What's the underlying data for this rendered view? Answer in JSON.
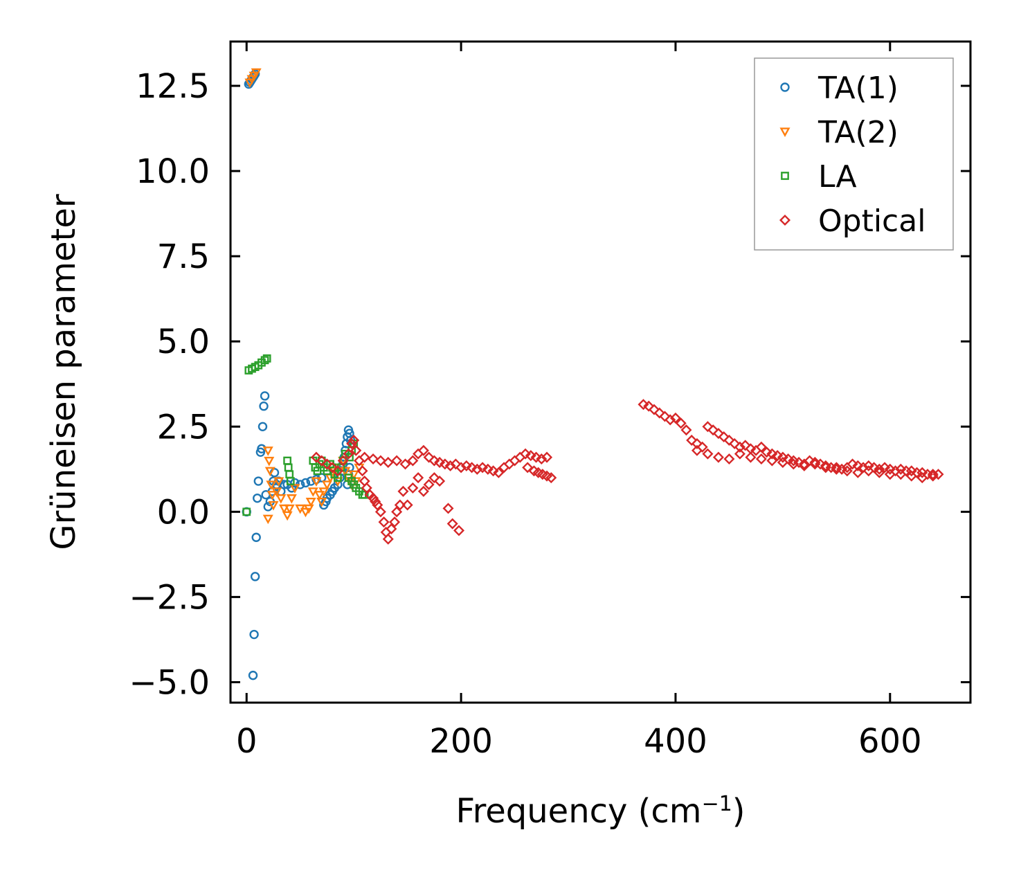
{
  "chart_data": {
    "type": "scatter",
    "title": "",
    "xlabel": "Frequency (cm",
    "xlabel_sup": "−1",
    "xlabel_suffix": ")",
    "ylabel": "Grüneisen parameter",
    "xlim": [
      -15,
      675
    ],
    "ylim": [
      -5.6,
      13.8
    ],
    "xticks": [
      0,
      200,
      400,
      600
    ],
    "xtick_labels": [
      "0",
      "200",
      "400",
      "600"
    ],
    "yticks": [
      -5.0,
      -2.5,
      0.0,
      2.5,
      5.0,
      7.5,
      10.0,
      12.5
    ],
    "ytick_labels": [
      "−5.0",
      "−2.5",
      "0.0",
      "2.5",
      "5.0",
      "7.5",
      "10.0",
      "12.5"
    ],
    "legend_position": "top-right",
    "series": [
      {
        "name": "TA(1)",
        "marker": "circle",
        "color": "#1f77b4",
        "points": [
          [
            0,
            0
          ],
          [
            2,
            12.55
          ],
          [
            3,
            12.6
          ],
          [
            4,
            12.65
          ],
          [
            5,
            12.7
          ],
          [
            6,
            12.75
          ],
          [
            7,
            12.8
          ],
          [
            8,
            12.85
          ],
          [
            6,
            -4.8
          ],
          [
            7,
            -3.6
          ],
          [
            8,
            -1.9
          ],
          [
            9,
            -0.75
          ],
          [
            10,
            0.4
          ],
          [
            11,
            0.9
          ],
          [
            13,
            1.75
          ],
          [
            14,
            1.85
          ],
          [
            15,
            2.5
          ],
          [
            16,
            3.1
          ],
          [
            17,
            3.4
          ],
          [
            18,
            0.5
          ],
          [
            20,
            0.15
          ],
          [
            22,
            0.3
          ],
          [
            24,
            0.6
          ],
          [
            25,
            0.9
          ],
          [
            26,
            1.15
          ],
          [
            28,
            0.8
          ],
          [
            30,
            0.9
          ],
          [
            32,
            0.6
          ],
          [
            35,
            0.8
          ],
          [
            38,
            0.8
          ],
          [
            42,
            0.7
          ],
          [
            45,
            0.85
          ],
          [
            50,
            0.8
          ],
          [
            55,
            0.85
          ],
          [
            60,
            0.9
          ],
          [
            65,
            0.95
          ],
          [
            70,
            1.0
          ],
          [
            72,
            0.2
          ],
          [
            74,
            0.3
          ],
          [
            75,
            0.4
          ],
          [
            78,
            0.5
          ],
          [
            80,
            0.6
          ],
          [
            82,
            0.7
          ],
          [
            85,
            0.8
          ],
          [
            87,
            1.0
          ],
          [
            89,
            1.2
          ],
          [
            90,
            1.4
          ],
          [
            91,
            1.6
          ],
          [
            92,
            1.8
          ],
          [
            93,
            2.0
          ],
          [
            94,
            2.2
          ],
          [
            95,
            2.4
          ],
          [
            96,
            2.3
          ],
          [
            97,
            2.1
          ],
          [
            94,
            0.8
          ],
          [
            95,
            1.1
          ],
          [
            96,
            1.3
          ]
        ]
      },
      {
        "name": "TA(2)",
        "marker": "triangle-down",
        "color": "#ff7f0e",
        "points": [
          [
            3,
            12.6
          ],
          [
            5,
            12.7
          ],
          [
            7,
            12.8
          ],
          [
            9,
            12.9
          ],
          [
            20,
            1.8
          ],
          [
            21,
            1.5
          ],
          [
            22,
            1.2
          ],
          [
            23,
            0.8
          ],
          [
            24,
            0.5
          ],
          [
            25,
            0.2
          ],
          [
            20,
            -0.2
          ],
          [
            28,
            0.6
          ],
          [
            30,
            0.9
          ],
          [
            32,
            0.4
          ],
          [
            35,
            0.1
          ],
          [
            38,
            -0.1
          ],
          [
            40,
            0.1
          ],
          [
            42,
            0.4
          ],
          [
            45,
            0.7
          ],
          [
            50,
            0.1
          ],
          [
            55,
            0.0
          ],
          [
            58,
            0.1
          ],
          [
            60,
            0.3
          ],
          [
            62,
            0.6
          ],
          [
            65,
            0.9
          ],
          [
            68,
            0.5
          ],
          [
            70,
            0.3
          ],
          [
            72,
            0.6
          ],
          [
            75,
            0.8
          ],
          [
            78,
            1.0
          ],
          [
            82,
            1.2
          ],
          [
            85,
            0.9
          ],
          [
            88,
            1.3
          ],
          [
            90,
            1.5
          ],
          [
            92,
            1.2
          ],
          [
            95,
            1.0
          ],
          [
            98,
            0.8
          ],
          [
            100,
            1.1
          ],
          [
            102,
            0.9
          ],
          [
            105,
            1.3
          ]
        ]
      },
      {
        "name": "LA",
        "marker": "square",
        "color": "#2ca02c",
        "points": [
          [
            0,
            0
          ],
          [
            2,
            4.15
          ],
          [
            5,
            4.2
          ],
          [
            8,
            4.25
          ],
          [
            11,
            4.3
          ],
          [
            14,
            4.38
          ],
          [
            17,
            4.45
          ],
          [
            19,
            4.5
          ],
          [
            38,
            1.5
          ],
          [
            39,
            1.3
          ],
          [
            40,
            1.1
          ],
          [
            41,
            0.9
          ],
          [
            62,
            1.5
          ],
          [
            64,
            1.3
          ],
          [
            66,
            1.2
          ],
          [
            68,
            1.4
          ],
          [
            70,
            1.5
          ],
          [
            72,
            1.3
          ],
          [
            75,
            1.2
          ],
          [
            78,
            1.4
          ],
          [
            80,
            1.3
          ],
          [
            82,
            1.1
          ],
          [
            85,
            1.0
          ],
          [
            88,
            1.3
          ],
          [
            90,
            1.5
          ],
          [
            92,
            1.7
          ],
          [
            95,
            1.0
          ],
          [
            98,
            0.9
          ],
          [
            100,
            0.8
          ],
          [
            102,
            0.7
          ],
          [
            105,
            0.6
          ],
          [
            108,
            0.5
          ],
          [
            110,
            0.5
          ],
          [
            100,
            2.0
          ],
          [
            98,
            1.8
          ],
          [
            96,
            1.6
          ]
        ]
      },
      {
        "name": "Optical",
        "marker": "diamond",
        "color": "#d62728",
        "points": [
          [
            65,
            1.6
          ],
          [
            70,
            1.5
          ],
          [
            75,
            1.4
          ],
          [
            80,
            1.3
          ],
          [
            85,
            1.2
          ],
          [
            90,
            1.5
          ],
          [
            95,
            1.7
          ],
          [
            98,
            2.0
          ],
          [
            100,
            2.1
          ],
          [
            102,
            1.8
          ],
          [
            105,
            1.5
          ],
          [
            108,
            1.2
          ],
          [
            110,
            0.9
          ],
          [
            112,
            0.7
          ],
          [
            115,
            0.5
          ],
          [
            118,
            0.4
          ],
          [
            120,
            0.3
          ],
          [
            122,
            0.2
          ],
          [
            125,
            0.0
          ],
          [
            128,
            -0.3
          ],
          [
            130,
            -0.6
          ],
          [
            132,
            -0.8
          ],
          [
            135,
            -0.5
          ],
          [
            138,
            -0.3
          ],
          [
            140,
            0.0
          ],
          [
            143,
            0.2
          ],
          [
            146,
            0.6
          ],
          [
            150,
            0.2
          ],
          [
            155,
            0.7
          ],
          [
            160,
            1.0
          ],
          [
            165,
            0.6
          ],
          [
            170,
            0.8
          ],
          [
            175,
            1.0
          ],
          [
            180,
            0.9
          ],
          [
            188,
            0.1
          ],
          [
            192,
            -0.35
          ],
          [
            198,
            -0.55
          ],
          [
            110,
            1.6
          ],
          [
            118,
            1.55
          ],
          [
            125,
            1.5
          ],
          [
            132,
            1.45
          ],
          [
            140,
            1.5
          ],
          [
            148,
            1.4
          ],
          [
            155,
            1.5
          ],
          [
            160,
            1.7
          ],
          [
            165,
            1.8
          ],
          [
            170,
            1.6
          ],
          [
            175,
            1.5
          ],
          [
            180,
            1.45
          ],
          [
            185,
            1.4
          ],
          [
            190,
            1.35
          ],
          [
            195,
            1.4
          ],
          [
            200,
            1.3
          ],
          [
            205,
            1.35
          ],
          [
            210,
            1.3
          ],
          [
            215,
            1.25
          ],
          [
            220,
            1.3
          ],
          [
            225,
            1.25
          ],
          [
            230,
            1.2
          ],
          [
            235,
            1.15
          ],
          [
            240,
            1.3
          ],
          [
            245,
            1.4
          ],
          [
            250,
            1.5
          ],
          [
            255,
            1.6
          ],
          [
            260,
            1.7
          ],
          [
            265,
            1.65
          ],
          [
            270,
            1.6
          ],
          [
            275,
            1.55
          ],
          [
            280,
            1.6
          ],
          [
            262,
            1.3
          ],
          [
            268,
            1.2
          ],
          [
            272,
            1.15
          ],
          [
            276,
            1.1
          ],
          [
            280,
            1.05
          ],
          [
            284,
            1.0
          ],
          [
            370,
            3.15
          ],
          [
            375,
            3.1
          ],
          [
            380,
            3.0
          ],
          [
            385,
            2.9
          ],
          [
            390,
            2.8
          ],
          [
            395,
            2.7
          ],
          [
            400,
            2.75
          ],
          [
            405,
            2.6
          ],
          [
            410,
            2.4
          ],
          [
            415,
            2.1
          ],
          [
            420,
            2.0
          ],
          [
            425,
            1.9
          ],
          [
            430,
            2.5
          ],
          [
            435,
            2.4
          ],
          [
            440,
            2.3
          ],
          [
            445,
            2.2
          ],
          [
            450,
            2.1
          ],
          [
            455,
            2.0
          ],
          [
            460,
            1.9
          ],
          [
            465,
            1.95
          ],
          [
            470,
            1.85
          ],
          [
            475,
            1.8
          ],
          [
            480,
            1.9
          ],
          [
            485,
            1.75
          ],
          [
            490,
            1.7
          ],
          [
            495,
            1.65
          ],
          [
            500,
            1.6
          ],
          [
            505,
            1.55
          ],
          [
            510,
            1.5
          ],
          [
            515,
            1.45
          ],
          [
            520,
            1.4
          ],
          [
            525,
            1.5
          ],
          [
            530,
            1.45
          ],
          [
            535,
            1.4
          ],
          [
            540,
            1.35
          ],
          [
            545,
            1.3
          ],
          [
            550,
            1.3
          ],
          [
            555,
            1.25
          ],
          [
            560,
            1.3
          ],
          [
            565,
            1.4
          ],
          [
            570,
            1.35
          ],
          [
            575,
            1.3
          ],
          [
            580,
            1.35
          ],
          [
            585,
            1.3
          ],
          [
            590,
            1.25
          ],
          [
            595,
            1.3
          ],
          [
            600,
            1.25
          ],
          [
            605,
            1.2
          ],
          [
            610,
            1.25
          ],
          [
            615,
            1.2
          ],
          [
            620,
            1.2
          ],
          [
            625,
            1.15
          ],
          [
            630,
            1.15
          ],
          [
            635,
            1.1
          ],
          [
            640,
            1.1
          ],
          [
            645,
            1.1
          ],
          [
            420,
            1.8
          ],
          [
            430,
            1.7
          ],
          [
            440,
            1.6
          ],
          [
            450,
            1.55
          ],
          [
            460,
            1.7
          ],
          [
            470,
            1.6
          ],
          [
            480,
            1.55
          ],
          [
            490,
            1.5
          ],
          [
            500,
            1.45
          ],
          [
            510,
            1.4
          ],
          [
            520,
            1.35
          ],
          [
            530,
            1.4
          ],
          [
            540,
            1.3
          ],
          [
            550,
            1.25
          ],
          [
            560,
            1.2
          ],
          [
            570,
            1.15
          ],
          [
            580,
            1.2
          ],
          [
            590,
            1.15
          ],
          [
            600,
            1.1
          ],
          [
            610,
            1.1
          ],
          [
            620,
            1.05
          ],
          [
            630,
            1.0
          ],
          [
            640,
            1.05
          ]
        ]
      }
    ]
  }
}
